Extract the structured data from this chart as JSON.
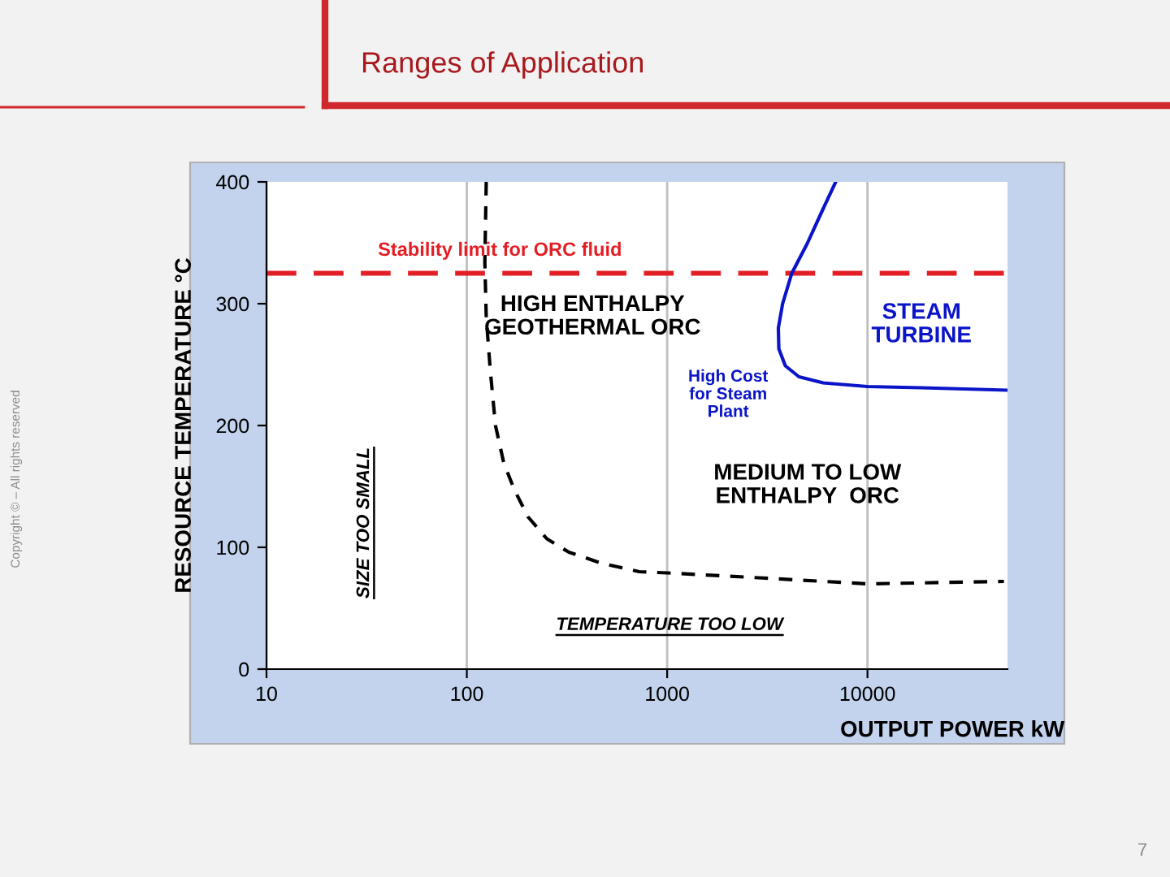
{
  "chart_data": {
    "type": "line",
    "title": "Ranges of Application",
    "xlabel": "OUTPUT POWER kW",
    "ylabel": "RESOURCE TEMPERATURE °C",
    "log": "x",
    "xlim": [
      10,
      50000
    ],
    "xticks": [
      10,
      100,
      1000,
      10000
    ],
    "ylim": [
      0,
      400
    ],
    "yticks": [
      0,
      100,
      200,
      300,
      400
    ],
    "grid": "x",
    "series": [
      {
        "color": "#000000",
        "line_style": "dashed",
        "x": [
          125,
          123,
          125,
          131,
          139,
          153,
          173,
          202,
          251,
          323,
          469,
          724,
          1000,
          2850,
          10000,
          48000
        ],
        "values": [
          400,
          334,
          289,
          245,
          200,
          169,
          147,
          125,
          107,
          96,
          87,
          80,
          79,
          75,
          70,
          72
        ]
      },
      {
        "color": "#0a14c8",
        "line_style": "solid",
        "x": [
          6940,
          6010,
          4990,
          4190,
          3770,
          3590,
          3610,
          3890,
          4550,
          6010,
          10000,
          18500,
          50000
        ],
        "values": [
          400,
          378,
          349,
          325,
          300,
          280,
          263,
          249,
          240,
          235,
          232,
          231,
          229
        ]
      }
    ],
    "ref_lines": [
      {
        "axis": "y",
        "value": 325,
        "label": "Stability limit for ORC fluid",
        "color": "#e31e24",
        "line_style": "dashed"
      }
    ],
    "annotations": [
      "HIGH ENTHALPY\nGEOTHERMAL ORC",
      "STEAM\nTURBINE",
      "High Cost\nfor Steam\nPlant",
      "MEDIUM TO LOW\nENTHALPY  ORC",
      "SIZE TOO SMALL",
      "TEMPERATURE TOO LOW",
      "Copyright © – All rights reserved",
      "7"
    ]
  }
}
